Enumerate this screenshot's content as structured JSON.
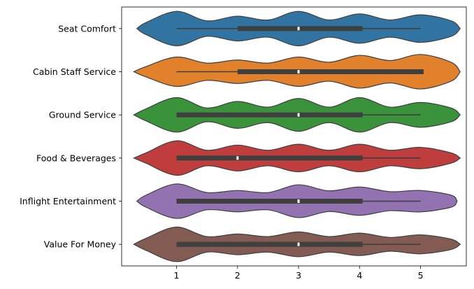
{
  "chart_data": {
    "type": "violin",
    "orientation": "horizontal",
    "title": "",
    "xlabel": "",
    "ylabel": "",
    "xlim": [
      0.1,
      5.75
    ],
    "x_ticks": [
      1,
      2,
      3,
      4,
      5
    ],
    "grid": false,
    "categories": [
      "Seat Comfort",
      "Cabin Staff Service",
      "Ground Service",
      "Food & Beverages",
      "Inflight Entertainment",
      "Value For Money"
    ],
    "series": [
      {
        "category": "Seat Comfort",
        "color": "#3274a1",
        "whisker": [
          1,
          5
        ],
        "q1": 2,
        "median": 3,
        "q3": 4.05,
        "density": [
          [
            0.35,
            0.0
          ],
          [
            0.5,
            0.35
          ],
          [
            1.0,
            1.0
          ],
          [
            1.5,
            0.45
          ],
          [
            2.0,
            0.72
          ],
          [
            2.5,
            0.5
          ],
          [
            3.0,
            1.0
          ],
          [
            3.5,
            0.5
          ],
          [
            4.0,
            0.85
          ],
          [
            4.5,
            0.5
          ],
          [
            5.0,
            0.8
          ],
          [
            5.5,
            0.45
          ],
          [
            5.65,
            0.0
          ]
        ]
      },
      {
        "category": "Cabin Staff Service",
        "color": "#e1812c",
        "whisker": [
          1,
          5
        ],
        "q1": 2,
        "median": 3,
        "q3": 5.05,
        "density": [
          [
            0.3,
            0.0
          ],
          [
            0.5,
            0.3
          ],
          [
            1.0,
            0.85
          ],
          [
            1.5,
            0.5
          ],
          [
            2.0,
            0.68
          ],
          [
            2.5,
            0.5
          ],
          [
            3.0,
            0.85
          ],
          [
            3.5,
            0.55
          ],
          [
            4.0,
            0.95
          ],
          [
            4.5,
            0.65
          ],
          [
            5.0,
            1.0
          ],
          [
            5.5,
            0.55
          ],
          [
            5.65,
            0.0
          ]
        ]
      },
      {
        "category": "Ground Service",
        "color": "#3a923a",
        "whisker": [
          1,
          5
        ],
        "q1": 1,
        "median": 3,
        "q3": 4.05,
        "density": [
          [
            0.3,
            0.0
          ],
          [
            0.5,
            0.35
          ],
          [
            1.0,
            1.0
          ],
          [
            1.5,
            0.4
          ],
          [
            2.0,
            0.78
          ],
          [
            2.5,
            0.45
          ],
          [
            3.0,
            0.95
          ],
          [
            3.5,
            0.45
          ],
          [
            4.0,
            1.0
          ],
          [
            4.5,
            0.45
          ],
          [
            5.0,
            0.72
          ],
          [
            5.5,
            0.4
          ],
          [
            5.65,
            0.0
          ]
        ]
      },
      {
        "category": "Food & Beverages",
        "color": "#c03d3e",
        "whisker": [
          1,
          5
        ],
        "q1": 1,
        "median": 2,
        "q3": 4.05,
        "density": [
          [
            0.3,
            0.0
          ],
          [
            0.5,
            0.3
          ],
          [
            1.0,
            1.0
          ],
          [
            1.5,
            0.45
          ],
          [
            2.0,
            0.75
          ],
          [
            2.5,
            0.45
          ],
          [
            3.0,
            0.8
          ],
          [
            3.5,
            0.45
          ],
          [
            4.0,
            0.8
          ],
          [
            4.5,
            0.45
          ],
          [
            5.0,
            0.62
          ],
          [
            5.5,
            0.3
          ],
          [
            5.65,
            0.0
          ]
        ]
      },
      {
        "category": "Inflight Entertainment",
        "color": "#9372b2",
        "whisker": [
          1,
          5
        ],
        "q1": 1,
        "median": 3,
        "q3": 4.05,
        "density": [
          [
            0.35,
            0.0
          ],
          [
            0.5,
            0.35
          ],
          [
            1.0,
            1.0
          ],
          [
            1.5,
            0.5
          ],
          [
            2.0,
            0.62
          ],
          [
            2.5,
            0.5
          ],
          [
            3.0,
            0.95
          ],
          [
            3.5,
            0.6
          ],
          [
            4.0,
            0.82
          ],
          [
            4.5,
            0.55
          ],
          [
            5.0,
            0.62
          ],
          [
            5.5,
            0.35
          ],
          [
            5.6,
            0.0
          ]
        ]
      },
      {
        "category": "Value For Money",
        "color": "#845b53",
        "whisker": [
          1,
          5
        ],
        "q1": 1,
        "median": 3,
        "q3": 4.05,
        "density": [
          [
            0.3,
            0.0
          ],
          [
            0.5,
            0.35
          ],
          [
            1.0,
            1.0
          ],
          [
            1.5,
            0.45
          ],
          [
            2.0,
            0.6
          ],
          [
            2.5,
            0.45
          ],
          [
            3.0,
            0.72
          ],
          [
            3.5,
            0.45
          ],
          [
            4.0,
            0.65
          ],
          [
            4.5,
            0.4
          ],
          [
            5.0,
            0.55
          ],
          [
            5.5,
            0.3
          ],
          [
            5.65,
            0.0
          ]
        ]
      }
    ]
  }
}
